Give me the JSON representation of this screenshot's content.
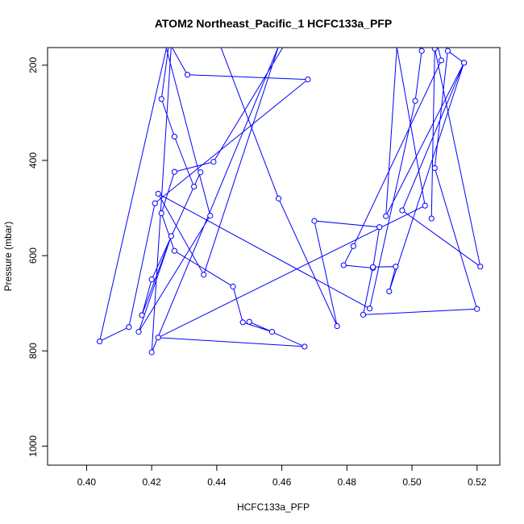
{
  "chart_data": {
    "type": "line",
    "title": "ATOM2 Northeast_Pacific_1 HCFC133a_PFP",
    "xlabel": "HCFC133a_PFP",
    "ylabel": "Pressure (mbar)",
    "xlim": [
      0.388,
      0.527
    ],
    "ylim": [
      1040,
      163
    ],
    "y_reversed": true,
    "xticks": [
      "0.40",
      "0.42",
      "0.44",
      "0.46",
      "0.48",
      "0.50",
      "0.52"
    ],
    "xtick_values": [
      0.4,
      0.42,
      0.44,
      0.46,
      0.48,
      0.5,
      0.52
    ],
    "yticks": [
      "200",
      "400",
      "600",
      "800",
      "1000"
    ],
    "ytick_values": [
      200,
      400,
      600,
      800,
      1000
    ],
    "grid": false,
    "legend": "none",
    "line_color": "#0000ff",
    "marker": "open-circle",
    "series": [
      {
        "x": [
          0.426,
          0.431,
          0.468,
          0.421,
          0.413,
          0.404,
          0.426,
          0.423,
          0.427,
          0.433,
          0.435,
          0.42,
          0.417,
          0.426,
          0.416,
          0.438,
          0.423,
          0.44,
          0.461,
          0.439,
          0.427,
          0.423,
          0.427,
          0.445,
          0.448,
          0.457,
          0.45,
          0.467,
          0.422,
          0.504,
          0.494,
          0.512,
          0.506,
          0.509,
          0.482,
          0.479,
          0.488,
          0.49,
          0.47,
          0.477,
          0.459,
          0.44,
          0.426,
          0.42,
          0.459,
          0.436,
          0.422,
          0.487,
          0.501,
          0.503,
          0.496,
          0.492,
          0.516,
          0.493,
          0.495,
          0.488,
          0.485,
          0.52,
          0.507,
          0.511,
          0.516,
          0.497,
          0.521,
          0.507,
          0.506
        ],
        "y": [
          160,
          220,
          230,
          490,
          750,
          780,
          120,
          271,
          350,
          455,
          425,
          650,
          725,
          559,
          760,
          516,
          125,
          100,
          155,
          403,
          424,
          511,
          590,
          665,
          740,
          760,
          739,
          791,
          772,
          495,
          110,
          130,
          105,
          190,
          580,
          620,
          626,
          540,
          527,
          748,
          480,
          140,
          160,
          803,
          160,
          640,
          470,
          711,
          275,
          170,
          95,
          517,
          195,
          675,
          623,
          624,
          724,
          712,
          416,
          170,
          195,
          505,
          623,
          165,
          522
        ]
      }
    ]
  }
}
